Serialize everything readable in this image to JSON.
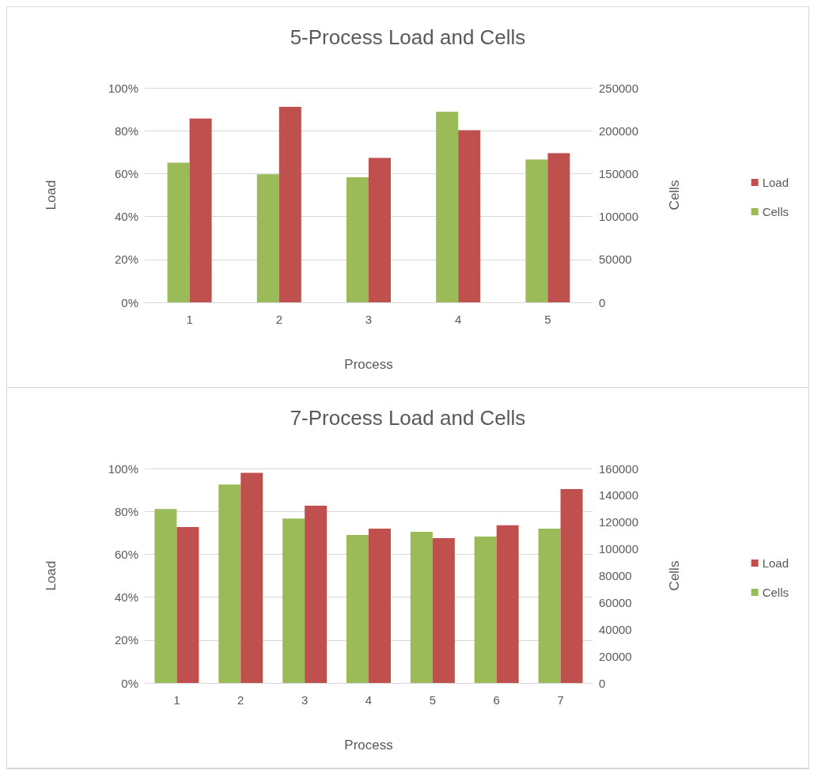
{
  "chart_data": [
    {
      "type": "bar",
      "title": "5-Process Load and Cells",
      "xlabel": "Process",
      "ylabel": "Load",
      "y2label": "Cells",
      "categories": [
        "1",
        "2",
        "3",
        "4",
        "5"
      ],
      "series": [
        {
          "name": "Cells",
          "color": "#9bbb59",
          "axis": "y2",
          "values": [
            162800,
            149300,
            145700,
            222200,
            166500
          ]
        },
        {
          "name": "Load",
          "color": "#c0504d",
          "values": [
            85.7,
            91.1,
            67.3,
            80.3,
            69.6
          ]
        }
      ],
      "ylim": [
        0,
        100
      ],
      "yticks": [
        {
          "value": 0,
          "label": "0%"
        },
        {
          "value": 20,
          "label": "20%"
        },
        {
          "value": 40,
          "label": "40%"
        },
        {
          "value": 60,
          "label": "60%"
        },
        {
          "value": 80,
          "label": "80%"
        },
        {
          "value": 100,
          "label": "100%"
        }
      ],
      "y2lim": [
        0,
        250000
      ],
      "y2ticks": [
        0,
        50000,
        100000,
        150000,
        200000,
        250000
      ],
      "grid": "y",
      "legend": "right"
    },
    {
      "type": "bar",
      "title": "7-Process Load and Cells",
      "xlabel": "Process",
      "ylabel": "Load",
      "y2label": "Cells",
      "categories": [
        "1",
        "2",
        "3",
        "4",
        "5",
        "6",
        "7"
      ],
      "series": [
        {
          "name": "Cells",
          "color": "#9bbb59",
          "axis": "y2",
          "values": [
            129700,
            148100,
            122600,
            110400,
            112800,
            109200,
            115200
          ]
        },
        {
          "name": "Load",
          "color": "#c0504d",
          "values": [
            72.7,
            98.0,
            82.7,
            72.0,
            67.5,
            73.5,
            90.4
          ]
        }
      ],
      "ylim": [
        0,
        100
      ],
      "yticks": [
        {
          "value": 0,
          "label": "0%"
        },
        {
          "value": 20,
          "label": "20%"
        },
        {
          "value": 40,
          "label": "40%"
        },
        {
          "value": 60,
          "label": "60%"
        },
        {
          "value": 80,
          "label": "80%"
        },
        {
          "value": 100,
          "label": "100%"
        }
      ],
      "y2lim": [
        0,
        160000
      ],
      "y2ticks": [
        0,
        20000,
        40000,
        60000,
        80000,
        100000,
        120000,
        140000,
        160000
      ],
      "grid": "y",
      "legend": "right"
    }
  ]
}
